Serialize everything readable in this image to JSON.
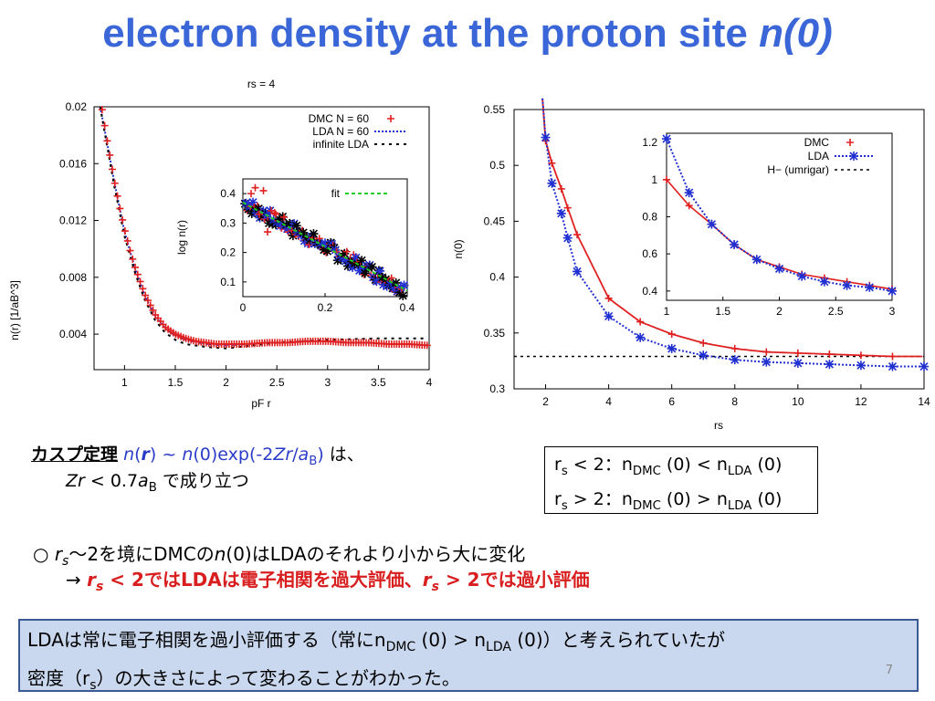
{
  "title": {
    "main": "electron density at the proton site ",
    "italic": "n(0)"
  },
  "chart_data": [
    {
      "type": "line",
      "title": "rs = 4",
      "xlabel": "pF r",
      "ylabel": "n(r) [1/aB^3]",
      "xlim": [
        0.7,
        4.0
      ],
      "ylim": [
        0.0015,
        0.02
      ],
      "xticks": [
        "1",
        "1.5",
        "2",
        "2.5",
        "3",
        "3.5",
        "4"
      ],
      "yticks": [
        "0.004",
        "0.008",
        "0.012",
        "0.016",
        "0.02"
      ],
      "legend": [
        "DMC N = 60",
        "LDA N = 60",
        "infinite LDA"
      ],
      "series": [
        {
          "name": "DMC N = 60",
          "x": [
            0.78,
            0.82,
            0.86,
            0.9,
            0.95,
            1.0,
            1.05,
            1.1,
            1.2,
            1.3,
            1.4,
            1.5,
            1.6,
            1.7,
            1.8,
            1.9,
            2.0,
            2.2,
            2.4,
            2.6,
            2.8,
            3.0,
            3.2,
            3.4,
            3.6,
            3.8,
            4.0
          ],
          "y": [
            0.0198,
            0.018,
            0.0164,
            0.0148,
            0.013,
            0.0114,
            0.01,
            0.0088,
            0.0068,
            0.0054,
            0.0045,
            0.004,
            0.0037,
            0.0035,
            0.0034,
            0.0033,
            0.0033,
            0.0033,
            0.0034,
            0.0034,
            0.0035,
            0.0035,
            0.0034,
            0.0034,
            0.0033,
            0.0033,
            0.0032
          ]
        },
        {
          "name": "LDA N = 60",
          "x": [
            0.76,
            0.82,
            0.9,
            1.0,
            1.1,
            1.2,
            1.3,
            1.4,
            1.5,
            1.6,
            1.8,
            2.0,
            2.2,
            2.4,
            2.6,
            2.8,
            3.0,
            3.2,
            3.4,
            3.6,
            3.8,
            4.0
          ],
          "y": [
            0.02,
            0.0178,
            0.0147,
            0.0112,
            0.0087,
            0.0067,
            0.0053,
            0.0044,
            0.0039,
            0.0036,
            0.0033,
            0.0032,
            0.0033,
            0.0034,
            0.0034,
            0.0035,
            0.0035,
            0.0034,
            0.0034,
            0.0033,
            0.0033,
            0.0032
          ]
        },
        {
          "name": "infinite LDA",
          "x": [
            0.76,
            0.82,
            0.9,
            1.0,
            1.1,
            1.2,
            1.3,
            1.4,
            1.5,
            1.6,
            1.8,
            2.0,
            2.5,
            3.0,
            3.5,
            4.0
          ],
          "y": [
            0.02,
            0.0176,
            0.0144,
            0.0109,
            0.0084,
            0.0064,
            0.005,
            0.0041,
            0.0036,
            0.0033,
            0.0031,
            0.003,
            0.0034,
            0.0036,
            0.0037,
            0.0037
          ]
        }
      ],
      "inset": {
        "xlabel": "",
        "ylabel": "log n(r)",
        "xlim": [
          0,
          0.4
        ],
        "ylim": [
          0.05,
          0.45
        ],
        "xticks": [
          "0",
          "0.2",
          "0.4"
        ],
        "yticks": [
          "0.1",
          "0.2",
          "0.3",
          "0.4"
        ],
        "legend": [
          "fit"
        ],
        "fit": {
          "x": [
            0,
            0.4
          ],
          "y": [
            0.37,
            0.07
          ]
        }
      }
    },
    {
      "type": "line",
      "title": "",
      "xlabel": "rs",
      "ylabel": "n(0)",
      "xlim": [
        1,
        14
      ],
      "ylim": [
        0.3,
        0.55
      ],
      "xticks": [
        "2",
        "4",
        "6",
        "8",
        "10",
        "12",
        "14"
      ],
      "yticks": [
        "0.3",
        "0.35",
        "0.4",
        "0.45",
        "0.5",
        "0.55"
      ],
      "series": [
        {
          "name": "DMC",
          "x": [
            2,
            2.2,
            2.5,
            2.7,
            3,
            4,
            5,
            6,
            7,
            8,
            9,
            10,
            11,
            12,
            13
          ],
          "y": [
            0.522,
            0.502,
            0.479,
            0.462,
            0.438,
            0.381,
            0.36,
            0.349,
            0.341,
            0.336,
            0.333,
            0.332,
            0.331,
            0.33,
            0.329
          ]
        },
        {
          "name": "LDA",
          "x": [
            2,
            2.2,
            2.5,
            2.7,
            3,
            4,
            5,
            6,
            7,
            8,
            9,
            10,
            11,
            12,
            13,
            14
          ],
          "y": [
            0.525,
            0.484,
            0.457,
            0.435,
            0.405,
            0.365,
            0.346,
            0.336,
            0.33,
            0.326,
            0.324,
            0.323,
            0.322,
            0.321,
            0.32,
            0.32
          ]
        },
        {
          "name": "H− (umrigar)",
          "x": [
            1,
            14
          ],
          "y": [
            0.329,
            0.329
          ]
        }
      ],
      "inset": {
        "xlim": [
          1,
          3
        ],
        "ylim": [
          0.35,
          1.25
        ],
        "xticks": [
          "1",
          "1.5",
          "2",
          "2.5",
          "3"
        ],
        "yticks": [
          "0.4",
          "0.6",
          "0.8",
          "1",
          "1.2"
        ],
        "legend": [
          "DMC",
          "LDA",
          "H− (umrigar)"
        ],
        "dmc": {
          "x": [
            1,
            1.2,
            1.4,
            1.6,
            1.8,
            2.0,
            2.2,
            2.4,
            2.6,
            2.8,
            3.0
          ],
          "y": [
            1.0,
            0.86,
            0.76,
            0.65,
            0.57,
            0.53,
            0.49,
            0.47,
            0.45,
            0.43,
            0.41
          ]
        },
        "lda": {
          "x": [
            1,
            1.2,
            1.4,
            1.6,
            1.8,
            2.0,
            2.2,
            2.4,
            2.6,
            2.8,
            3.0
          ],
          "y": [
            1.22,
            0.93,
            0.76,
            0.65,
            0.57,
            0.52,
            0.48,
            0.45,
            0.43,
            0.42,
            0.4
          ]
        }
      }
    }
  ],
  "cusp": {
    "jp": "カスプ定理",
    "formula": "n(r) ~ n(0)exp(-2Zr/aB)",
    "ha": " は、",
    "cond": "Zr < 0.7aB",
    "holds": " で成り立つ"
  },
  "box1": {
    "line1": "rs < 2：nDMC (0) < nLDA (0)",
    "line2": "rs > 2：nDMC (0) > nLDA (0)"
  },
  "bullet": {
    "mark": "○",
    "line1": "rs〜2を境にDMCのn(0)はLDAのそれより小から大に変化",
    "line2": "→ rs < 2ではLDAは電子相関を過大評価、rs > 2では過小評価"
  },
  "summary": {
    "line1": "LDAは常に電子相関を過小評価する（常にnDMC (0) > nLDA (0)）と考えられていたが",
    "line2": "密度（rs）の大きさによって変わることがわかった。"
  },
  "page_number": "7",
  "colors": {
    "title": "#3a66d8",
    "dmc": "#e02020",
    "lda": "#2030d0",
    "fit": "#22cc22"
  }
}
